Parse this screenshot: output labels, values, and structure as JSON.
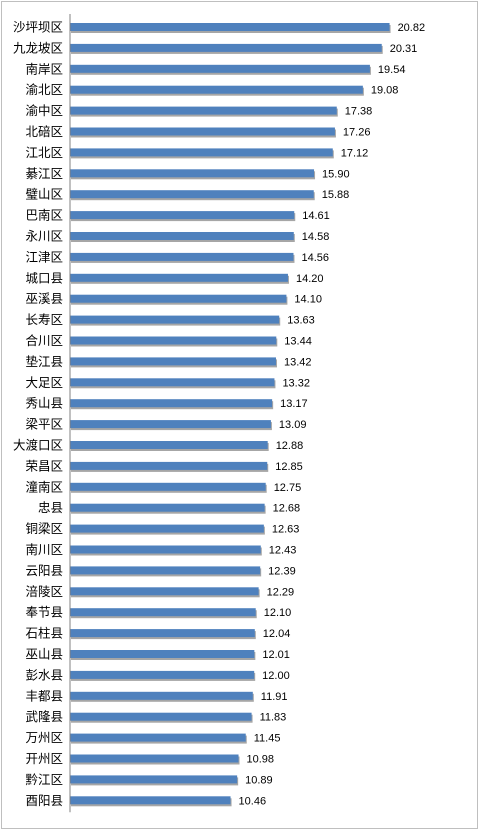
{
  "chart_data": {
    "type": "bar",
    "orientation": "horizontal",
    "title": "",
    "xlabel": "",
    "ylabel": "",
    "grid": false,
    "legend": "none",
    "xlim": [
      0,
      21.5
    ],
    "bar_color": "#4f81bd",
    "bar_shadow_color": "#a6a6a6",
    "axis_color": "#808080",
    "categories": [
      "沙坪坝区",
      "九龙坡区",
      "南岸区",
      "渝北区",
      "渝中区",
      "北碚区",
      "江北区",
      "綦江区",
      "璧山区",
      "巴南区",
      "永川区",
      "江津区",
      "城口县",
      "巫溪县",
      "长寿区",
      "合川区",
      "垫江县",
      "大足区",
      "秀山县",
      "梁平区",
      "大渡口区",
      "荣昌区",
      "潼南区",
      "忠县",
      "铜梁区",
      "南川区",
      "云阳县",
      "涪陵区",
      "奉节县",
      "石柱县",
      "巫山县",
      "彭水县",
      "丰都县",
      "武隆县",
      "万州区",
      "开州区",
      "黔江区",
      "酉阳县"
    ],
    "values": [
      20.82,
      20.31,
      19.54,
      19.08,
      17.38,
      17.26,
      17.12,
      15.9,
      15.88,
      14.61,
      14.58,
      14.56,
      14.2,
      14.1,
      13.63,
      13.44,
      13.42,
      13.32,
      13.17,
      13.09,
      12.88,
      12.85,
      12.75,
      12.68,
      12.63,
      12.43,
      12.39,
      12.29,
      12.1,
      12.04,
      12.01,
      12.0,
      11.91,
      11.83,
      11.45,
      10.98,
      10.89,
      10.46
    ],
    "value_labels": [
      "20.82",
      "20.31",
      "19.54",
      "19.08",
      "17.38",
      "17.26",
      "17.12",
      "15.90",
      "15.88",
      "14.61",
      "14.58",
      "14.56",
      "14.20",
      "14.10",
      "13.63",
      "13.44",
      "13.42",
      "13.32",
      "13.17",
      "13.09",
      "12.88",
      "12.85",
      "12.75",
      "12.68",
      "12.63",
      "12.43",
      "12.39",
      "12.29",
      "12.10",
      "12.04",
      "12.01",
      "12.00",
      "11.91",
      "11.83",
      "11.45",
      "10.98",
      "10.89",
      "10.46"
    ]
  }
}
